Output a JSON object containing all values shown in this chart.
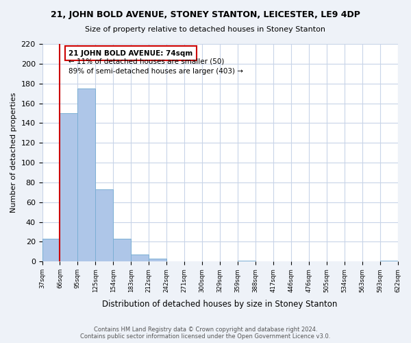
{
  "title": "21, JOHN BOLD AVENUE, STONEY STANTON, LEICESTER, LE9 4DP",
  "subtitle": "Size of property relative to detached houses in Stoney Stanton",
  "xlabel": "Distribution of detached houses by size in Stoney Stanton",
  "ylabel": "Number of detached properties",
  "bar_values": [
    23,
    150,
    175,
    73,
    23,
    7,
    3,
    0,
    0,
    0,
    0,
    1,
    0,
    0,
    0,
    0,
    0,
    0,
    0,
    1
  ],
  "bar_labels": [
    "37sqm",
    "66sqm",
    "95sqm",
    "125sqm",
    "154sqm",
    "183sqm",
    "212sqm",
    "242sqm",
    "271sqm",
    "300sqm",
    "329sqm",
    "359sqm",
    "388sqm",
    "417sqm",
    "446sqm",
    "476sqm",
    "505sqm",
    "534sqm",
    "563sqm",
    "593sqm",
    "622sqm"
  ],
  "bar_color": "#aec6e8",
  "bar_edge_color": "#7bafd4",
  "vline_x": 1,
  "vline_color": "#cc0000",
  "annotation_title": "21 JOHN BOLD AVENUE: 74sqm",
  "annotation_line1": "← 11% of detached houses are smaller (50)",
  "annotation_line2": "89% of semi-detached houses are larger (403) →",
  "annotation_box_color": "#ffffff",
  "annotation_box_edge_color": "#cc0000",
  "ylim": [
    0,
    220
  ],
  "yticks": [
    0,
    20,
    40,
    60,
    80,
    100,
    120,
    140,
    160,
    180,
    200,
    220
  ],
  "footer_line1": "Contains HM Land Registry data © Crown copyright and database right 2024.",
  "footer_line2": "Contains public sector information licensed under the Open Government Licence v3.0.",
  "background_color": "#eef2f8",
  "plot_background_color": "#ffffff",
  "grid_color": "#c8d4e8"
}
